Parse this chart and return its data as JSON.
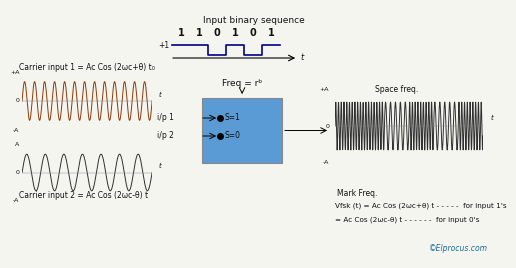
{
  "title": "Input binary sequence",
  "bits": [
    1,
    1,
    0,
    1,
    0,
    1
  ],
  "carrier1_label": "Carrier input 1 = Ac Cos (2ωc+θ) t₀",
  "carrier2_label": "Carrier input 2 = Ac Cos (2ωc-θ) t",
  "freq_label": "Freq = rᵇ",
  "ip1_label": "i/p 1",
  "ip2_label": "i/p 2",
  "s1_label": "S=1",
  "s0_label": "S=0",
  "space_freq_label": "Space freq.",
  "mark_freq_label": "Mark Freq.",
  "vfsk_line1": "Vfsk (t) = Ac Cos (2ωc+θ) t - - - - -  for input 1's",
  "vfsk_line2": "= Ac Cos (2ωc-θ) t - - - - - -  for input 0's",
  "copyright": "©Elprocus.com",
  "bg_color": "#f5f5f0",
  "box_color": "#5b9bd5",
  "wave_color1": "#8B3A0A",
  "wave_color2": "#303030",
  "wave_color3": "#303030",
  "binary_color": "#00008B",
  "text_color": "#111111",
  "copyright_color": "#1a6b9a",
  "plus1_label": "+1",
  "t_label": "t"
}
